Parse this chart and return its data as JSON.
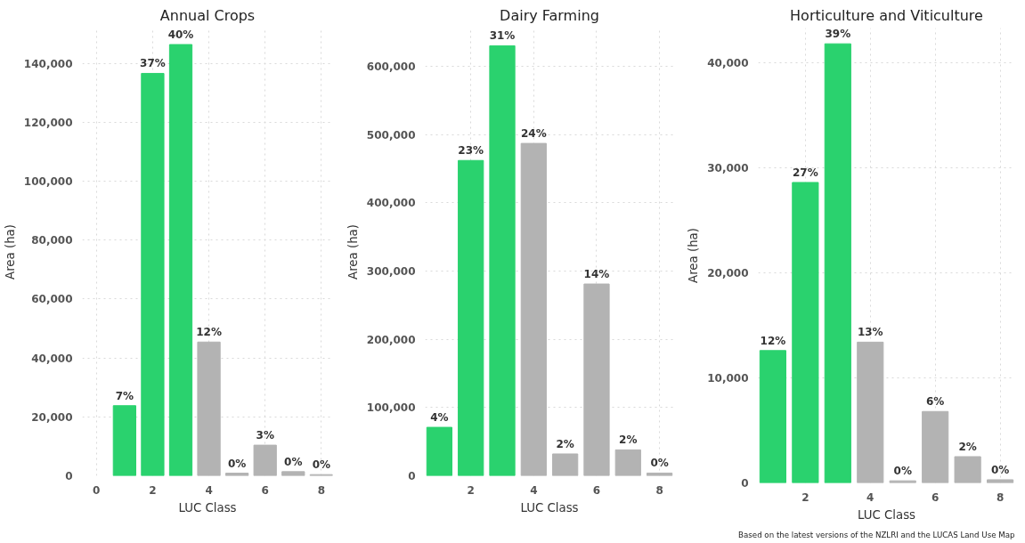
{
  "chart_data": [
    {
      "type": "bar",
      "title": "Annual Crops",
      "xlabel": "LUC Class",
      "ylabel": "Area (ha)",
      "x": [
        1,
        2,
        3,
        4,
        5,
        6,
        7,
        8
      ],
      "values": [
        23800,
        136600,
        146400,
        45400,
        900,
        10400,
        1400,
        400
      ],
      "colors": [
        "#2ad26e",
        "#2ad26e",
        "#2ad26e",
        "#b3b3b3",
        "#b3b3b3",
        "#b3b3b3",
        "#b3b3b3",
        "#b3b3b3"
      ],
      "xlim": [
        -0.5,
        8.4
      ],
      "xticks": [
        0,
        2,
        4,
        6,
        8
      ],
      "ylim": [
        0,
        152000
      ],
      "yticks": [
        {
          "value": 0,
          "label": "0"
        },
        {
          "value": 20000,
          "label": "20,000"
        },
        {
          "value": 40000,
          "label": "40,000"
        },
        {
          "value": 60000,
          "label": "60,000"
        },
        {
          "value": 80000,
          "label": "80,000"
        },
        {
          "value": 100000,
          "label": "100,000"
        },
        {
          "value": 120000,
          "label": "120,000"
        },
        {
          "value": 140000,
          "label": "140,000"
        }
      ],
      "grid": true,
      "annotations": [
        {
          "text": "7%",
          "x": 1,
          "y": 23800
        },
        {
          "text": "37%",
          "x": 2,
          "y": 136600
        },
        {
          "text": "40%",
          "x": 3,
          "y": 146400
        },
        {
          "text": "12%",
          "x": 4,
          "y": 45400
        },
        {
          "text": "0%",
          "x": 5,
          "y": 900
        },
        {
          "text": "3%",
          "x": 6,
          "y": 10400
        },
        {
          "text": "0%",
          "x": 7,
          "y": 1400
        },
        {
          "text": "0%",
          "x": 8,
          "y": 400
        }
      ]
    },
    {
      "type": "bar",
      "title": "Dairy Farming",
      "xlabel": "LUC Class",
      "ylabel": "Area (ha)",
      "x": [
        1,
        2,
        3,
        4,
        5,
        6,
        7,
        8
      ],
      "values": [
        71000,
        462000,
        630000,
        487000,
        32000,
        281000,
        38000,
        4000
      ],
      "colors": [
        "#2ad26e",
        "#2ad26e",
        "#2ad26e",
        "#b3b3b3",
        "#b3b3b3",
        "#b3b3b3",
        "#b3b3b3",
        "#b3b3b3"
      ],
      "xlim": [
        0.55,
        8.45
      ],
      "xticks": [
        2,
        4,
        6,
        8
      ],
      "ylim": [
        0,
        656000
      ],
      "yticks": [
        {
          "value": 0,
          "label": "0"
        },
        {
          "value": 100000,
          "label": "100,000"
        },
        {
          "value": 200000,
          "label": "200,000"
        },
        {
          "value": 300000,
          "label": "300,000"
        },
        {
          "value": 400000,
          "label": "400,000"
        },
        {
          "value": 500000,
          "label": "500,000"
        },
        {
          "value": 600000,
          "label": "600,000"
        }
      ],
      "grid": true,
      "annotations": [
        {
          "text": "4%",
          "x": 1,
          "y": 71000
        },
        {
          "text": "23%",
          "x": 2,
          "y": 462000
        },
        {
          "text": "31%",
          "x": 3,
          "y": 630000
        },
        {
          "text": "24%",
          "x": 4,
          "y": 487000
        },
        {
          "text": "2%",
          "x": 5,
          "y": 32000
        },
        {
          "text": "14%",
          "x": 6,
          "y": 281000
        },
        {
          "text": "2%",
          "x": 7,
          "y": 38000
        },
        {
          "text": "0%",
          "x": 8,
          "y": 4000
        }
      ]
    },
    {
      "type": "bar",
      "title": "Horticulture and Viticulture",
      "xlabel": "LUC Class",
      "ylabel": "Area (ha)",
      "x": [
        1,
        2,
        3,
        4,
        5,
        6,
        7,
        8
      ],
      "values": [
        12600,
        28600,
        41800,
        13400,
        200,
        6800,
        2500,
        300
      ],
      "colors": [
        "#2ad26e",
        "#2ad26e",
        "#2ad26e",
        "#b3b3b3",
        "#b3b3b3",
        "#b3b3b3",
        "#b3b3b3",
        "#b3b3b3"
      ],
      "xlim": [
        0.55,
        8.45
      ],
      "xticks": [
        2,
        4,
        6,
        8
      ],
      "ylim": [
        0,
        43300
      ],
      "yticks": [
        {
          "value": 0,
          "label": "0"
        },
        {
          "value": 10000,
          "label": "10,000"
        },
        {
          "value": 20000,
          "label": "20,000"
        },
        {
          "value": 30000,
          "label": "30,000"
        },
        {
          "value": 40000,
          "label": "40,000"
        }
      ],
      "grid": true,
      "annotations": [
        {
          "text": "12%",
          "x": 1,
          "y": 12600
        },
        {
          "text": "27%",
          "x": 2,
          "y": 28600
        },
        {
          "text": "39%",
          "x": 3,
          "y": 41800
        },
        {
          "text": "13%",
          "x": 4,
          "y": 13400
        },
        {
          "text": "0%",
          "x": 5,
          "y": 200
        },
        {
          "text": "6%",
          "x": 6,
          "y": 6800
        },
        {
          "text": "2%",
          "x": 7,
          "y": 2500
        },
        {
          "text": "0%",
          "x": 8,
          "y": 300
        },
        "Based on the latest versions of the NZLRI and the LUCAS Land Use Map"
      ]
    }
  ]
}
